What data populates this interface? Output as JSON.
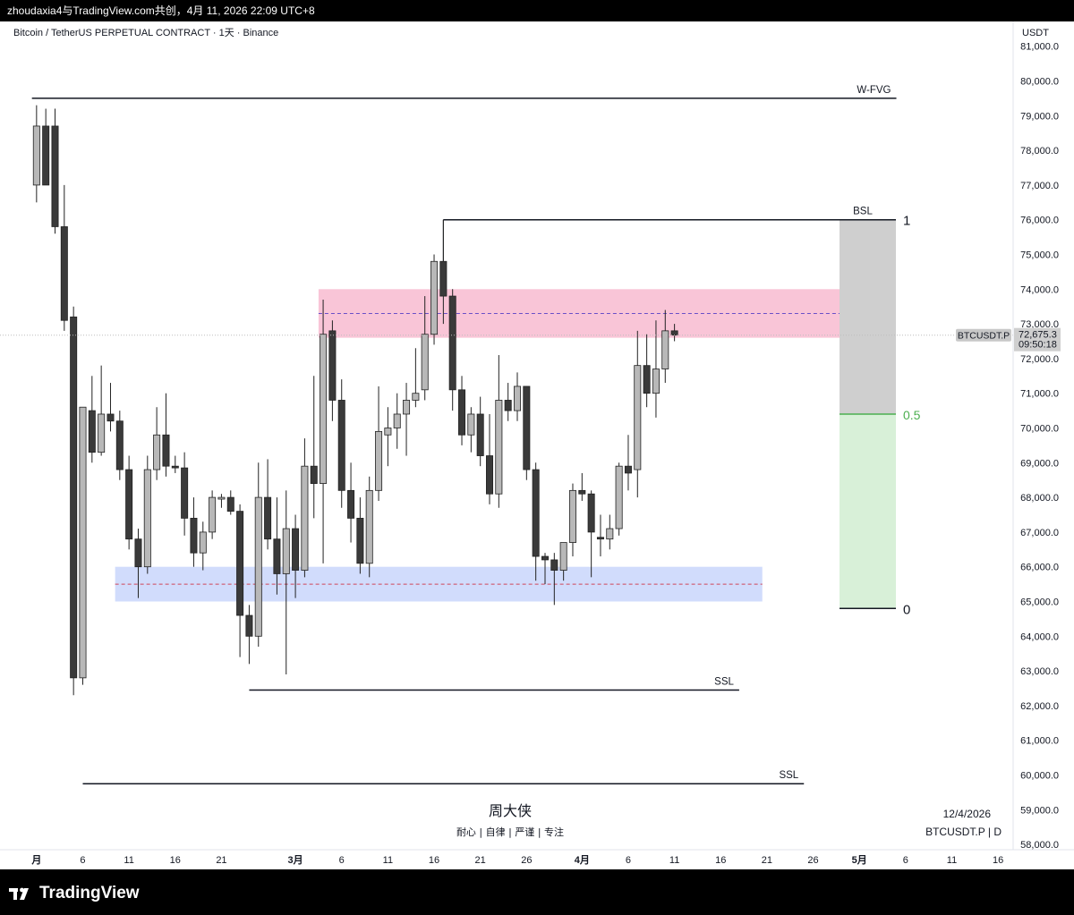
{
  "top_bar": {
    "text": "zhoudaxia4与TradingView.com共创，4月 11, 2026 22:09 UTC+8"
  },
  "legend": {
    "symbol_text": "Bitcoin / TetherUS PERPETUAL CONTRACT · 1天 · Binance"
  },
  "axis": {
    "currency": "USDT",
    "y_ticks": [
      58000,
      59000,
      60000,
      61000,
      62000,
      63000,
      64000,
      65000,
      66000,
      67000,
      68000,
      69000,
      70000,
      71000,
      72000,
      73000,
      74000,
      75000,
      76000,
      77000,
      78000,
      79000,
      80000,
      81000
    ],
    "x_ticks": [
      {
        "i": -2,
        "label": "月",
        "bold": true
      },
      {
        "i": 3,
        "label": "6"
      },
      {
        "i": 8,
        "label": "11"
      },
      {
        "i": 13,
        "label": "16"
      },
      {
        "i": 18,
        "label": "21"
      },
      {
        "i": 26,
        "label": "3月",
        "bold": true
      },
      {
        "i": 31,
        "label": "6"
      },
      {
        "i": 36,
        "label": "11"
      },
      {
        "i": 41,
        "label": "16"
      },
      {
        "i": 46,
        "label": "21"
      },
      {
        "i": 51,
        "label": "26"
      },
      {
        "i": 57,
        "label": "4月",
        "bold": true
      },
      {
        "i": 62,
        "label": "6"
      },
      {
        "i": 67,
        "label": "11"
      },
      {
        "i": 72,
        "label": "16"
      },
      {
        "i": 77,
        "label": "21"
      },
      {
        "i": 82,
        "label": "26"
      },
      {
        "i": 87,
        "label": "5月",
        "bold": true
      },
      {
        "i": 92,
        "label": "6"
      },
      {
        "i": 97,
        "label": "11"
      },
      {
        "i": 102,
        "label": "16"
      }
    ]
  },
  "price_label": {
    "symbol": "BTCUSDT.P",
    "price": "72,675.3",
    "countdown": "09:50:18",
    "value": 72675.3
  },
  "levels": [
    {
      "name": "W-FVG",
      "price": 79500,
      "from": -2.5,
      "to": 91
    },
    {
      "name": "BSL",
      "price": 76000,
      "from": 42,
      "to": 89
    },
    {
      "name": "SSL",
      "price": 62450,
      "from": 21,
      "to": 74
    },
    {
      "name": "SSL",
      "price": 59750,
      "from": 3,
      "to": 81
    }
  ],
  "zones": [
    {
      "name": "supply-zone",
      "top": 74000,
      "bottom": 72600,
      "mid": 73300,
      "from": 28.5,
      "to": 88.5,
      "fill": "#f8bbd0",
      "mid_color": "#6a4fc8"
    },
    {
      "name": "demand-zone",
      "top": 66000,
      "bottom": 65000,
      "mid": 65500,
      "from": 6.5,
      "to": 76.5,
      "fill": "#c9d6fb",
      "mid_color": "#d0455a"
    }
  ],
  "fib": {
    "level_1": 76000,
    "level_05": 70400,
    "level_0": 64800,
    "label_1": "1",
    "label_05": "0.5",
    "label_0": "0",
    "upper_color": "#cfcfcf",
    "lower_color": "#d8f0d8",
    "mid_color": "#4caf50"
  },
  "watermark": {
    "title": "周大侠",
    "subtitle": "耐心 | 自律 | 严谨 | 专注"
  },
  "corner_info": {
    "date": "12/4/2026",
    "symbol": "BTCUSDT.P | D"
  },
  "footer": {
    "brand": "TradingView"
  },
  "colors": {
    "bull": "#b8b8b8",
    "bear": "#3a3a3a",
    "wick": "#222222"
  },
  "chart_data": {
    "type": "candlestick",
    "title": "Bitcoin / TetherUS PERPETUAL CONTRACT · 1天 · Binance",
    "interval": "1天",
    "ylim": [
      57700,
      81300
    ],
    "candles": [
      {
        "i": -2,
        "o": 77000,
        "h": 79300,
        "l": 76500,
        "c": 78700
      },
      {
        "i": -1,
        "o": 78700,
        "h": 79200,
        "l": 77000,
        "c": 77000
      },
      {
        "i": 0,
        "o": 78700,
        "h": 79200,
        "l": 75600,
        "c": 75800
      },
      {
        "i": 1,
        "o": 75800,
        "h": 77000,
        "l": 72800,
        "c": 73100
      },
      {
        "i": 2,
        "o": 73200,
        "h": 73500,
        "l": 62300,
        "c": 62800
      },
      {
        "i": 3,
        "o": 62800,
        "h": 70600,
        "l": 62600,
        "c": 70600
      },
      {
        "i": 4,
        "o": 70500,
        "h": 71500,
        "l": 69000,
        "c": 69300
      },
      {
        "i": 5,
        "o": 69300,
        "h": 71800,
        "l": 69200,
        "c": 70400
      },
      {
        "i": 6,
        "o": 70400,
        "h": 71300,
        "l": 69900,
        "c": 70200
      },
      {
        "i": 7,
        "o": 70200,
        "h": 70500,
        "l": 68500,
        "c": 68800
      },
      {
        "i": 8,
        "o": 68800,
        "h": 69200,
        "l": 66500,
        "c": 66800
      },
      {
        "i": 9,
        "o": 66800,
        "h": 67100,
        "l": 65100,
        "c": 66000
      },
      {
        "i": 10,
        "o": 66000,
        "h": 69200,
        "l": 65800,
        "c": 68800
      },
      {
        "i": 11,
        "o": 68800,
        "h": 70600,
        "l": 68500,
        "c": 69800
      },
      {
        "i": 12,
        "o": 69800,
        "h": 71000,
        "l": 68600,
        "c": 68900
      },
      {
        "i": 13,
        "o": 68900,
        "h": 69200,
        "l": 68700,
        "c": 68850
      },
      {
        "i": 14,
        "o": 68850,
        "h": 69300,
        "l": 66900,
        "c": 67400
      },
      {
        "i": 15,
        "o": 67400,
        "h": 68000,
        "l": 66000,
        "c": 66400
      },
      {
        "i": 16,
        "o": 66400,
        "h": 67300,
        "l": 65900,
        "c": 67000
      },
      {
        "i": 17,
        "o": 67000,
        "h": 68200,
        "l": 66800,
        "c": 68000
      },
      {
        "i": 18,
        "o": 67950,
        "h": 68100,
        "l": 67700,
        "c": 68000
      },
      {
        "i": 19,
        "o": 68000,
        "h": 68200,
        "l": 67500,
        "c": 67600
      },
      {
        "i": 20,
        "o": 67600,
        "h": 67800,
        "l": 63400,
        "c": 64600
      },
      {
        "i": 21,
        "o": 64600,
        "h": 64900,
        "l": 63200,
        "c": 64000
      },
      {
        "i": 22,
        "o": 64000,
        "h": 69000,
        "l": 63700,
        "c": 68000
      },
      {
        "i": 23,
        "o": 68000,
        "h": 69100,
        "l": 66500,
        "c": 66800
      },
      {
        "i": 24,
        "o": 66800,
        "h": 68000,
        "l": 65200,
        "c": 65800
      },
      {
        "i": 25,
        "o": 65800,
        "h": 68200,
        "l": 62900,
        "c": 67100
      },
      {
        "i": 26,
        "o": 67100,
        "h": 67500,
        "l": 65100,
        "c": 65900
      },
      {
        "i": 27,
        "o": 65900,
        "h": 69700,
        "l": 65700,
        "c": 68900
      },
      {
        "i": 28,
        "o": 68900,
        "h": 71500,
        "l": 67400,
        "c": 68400
      },
      {
        "i": 29,
        "o": 68400,
        "h": 73700,
        "l": 66100,
        "c": 72700
      },
      {
        "i": 30,
        "o": 72800,
        "h": 73100,
        "l": 70200,
        "c": 70800
      },
      {
        "i": 31,
        "o": 70800,
        "h": 71400,
        "l": 67700,
        "c": 68200
      },
      {
        "i": 32,
        "o": 68200,
        "h": 69000,
        "l": 66700,
        "c": 67400
      },
      {
        "i": 33,
        "o": 67400,
        "h": 68000,
        "l": 65800,
        "c": 66100
      },
      {
        "i": 34,
        "o": 66100,
        "h": 68600,
        "l": 65700,
        "c": 68200
      },
      {
        "i": 35,
        "o": 68200,
        "h": 71200,
        "l": 67900,
        "c": 69900
      },
      {
        "i": 36,
        "o": 69800,
        "h": 70600,
        "l": 68900,
        "c": 70000
      },
      {
        "i": 37,
        "o": 70000,
        "h": 71000,
        "l": 69400,
        "c": 70400
      },
      {
        "i": 38,
        "o": 70400,
        "h": 71300,
        "l": 69200,
        "c": 70800
      },
      {
        "i": 39,
        "o": 70800,
        "h": 72300,
        "l": 70600,
        "c": 71000
      },
      {
        "i": 40,
        "o": 71100,
        "h": 73800,
        "l": 70800,
        "c": 72700
      },
      {
        "i": 41,
        "o": 72700,
        "h": 75000,
        "l": 72400,
        "c": 74800
      },
      {
        "i": 42,
        "o": 74800,
        "h": 76000,
        "l": 73000,
        "c": 73800
      },
      {
        "i": 43,
        "o": 73800,
        "h": 74000,
        "l": 70500,
        "c": 71100
      },
      {
        "i": 44,
        "o": 71100,
        "h": 71500,
        "l": 69500,
        "c": 69800
      },
      {
        "i": 45,
        "o": 69800,
        "h": 70600,
        "l": 69300,
        "c": 70400
      },
      {
        "i": 46,
        "o": 70400,
        "h": 70900,
        "l": 68900,
        "c": 69200
      },
      {
        "i": 47,
        "o": 69200,
        "h": 70400,
        "l": 67800,
        "c": 68100
      },
      {
        "i": 48,
        "o": 68100,
        "h": 72100,
        "l": 67700,
        "c": 70800
      },
      {
        "i": 49,
        "o": 70800,
        "h": 71300,
        "l": 70200,
        "c": 70500
      },
      {
        "i": 50,
        "o": 70500,
        "h": 71600,
        "l": 70200,
        "c": 71200
      },
      {
        "i": 51,
        "o": 71200,
        "h": 71200,
        "l": 68500,
        "c": 68800
      },
      {
        "i": 52,
        "o": 68800,
        "h": 69000,
        "l": 65600,
        "c": 66300
      },
      {
        "i": 53,
        "o": 66300,
        "h": 66400,
        "l": 65500,
        "c": 66200
      },
      {
        "i": 54,
        "o": 66200,
        "h": 66400,
        "l": 64900,
        "c": 65900
      },
      {
        "i": 55,
        "o": 65900,
        "h": 66600,
        "l": 65600,
        "c": 66700
      },
      {
        "i": 56,
        "o": 66700,
        "h": 68400,
        "l": 66300,
        "c": 68200
      },
      {
        "i": 57,
        "o": 68200,
        "h": 68700,
        "l": 67900,
        "c": 68100
      },
      {
        "i": 58,
        "o": 68100,
        "h": 68200,
        "l": 65700,
        "c": 67000
      },
      {
        "i": 59,
        "o": 66850,
        "h": 67500,
        "l": 66300,
        "c": 66800
      },
      {
        "i": 60,
        "o": 66800,
        "h": 67500,
        "l": 66500,
        "c": 67100
      },
      {
        "i": 61,
        "o": 67100,
        "h": 69000,
        "l": 66900,
        "c": 68900
      },
      {
        "i": 62,
        "o": 68900,
        "h": 69800,
        "l": 68200,
        "c": 68700
      },
      {
        "i": 63,
        "o": 68800,
        "h": 72800,
        "l": 68000,
        "c": 71800
      },
      {
        "i": 64,
        "o": 71800,
        "h": 72700,
        "l": 70600,
        "c": 71000
      },
      {
        "i": 65,
        "o": 71000,
        "h": 73100,
        "l": 70300,
        "c": 71700
      },
      {
        "i": 66,
        "o": 71700,
        "h": 73400,
        "l": 71300,
        "c": 72800
      },
      {
        "i": 67,
        "o": 72800,
        "h": 73000,
        "l": 72500,
        "c": 72675
      }
    ]
  }
}
